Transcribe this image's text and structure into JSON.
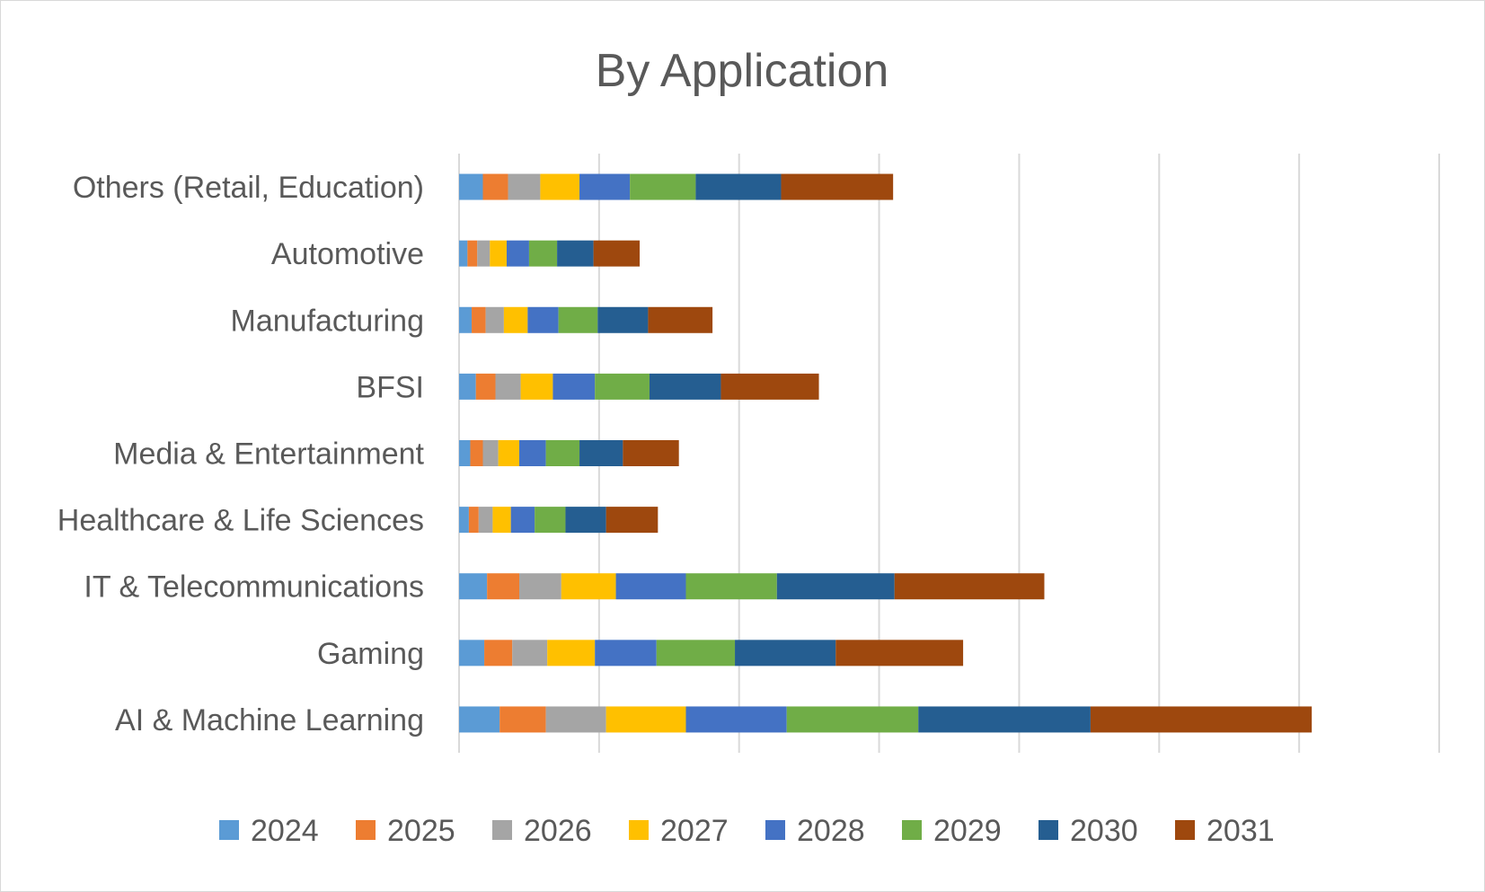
{
  "chart_data": {
    "type": "bar",
    "orientation": "horizontal",
    "stacked": true,
    "title": "By Application",
    "xlabel": "",
    "ylabel": "",
    "xlim": [
      0,
      7
    ],
    "grid": true,
    "legend_position": "bottom",
    "categories": [
      "AI & Machine Learning",
      "Gaming",
      "IT & Telecommunications",
      "Healthcare & Life Sciences",
      "Media & Entertainment",
      "BFSI",
      "Manufacturing",
      "Automotive",
      "Others (Retail, Education)"
    ],
    "series": [
      {
        "name": "2024",
        "color": "#5B9BD5",
        "values": [
          0.29,
          0.18,
          0.2,
          0.07,
          0.08,
          0.12,
          0.09,
          0.06,
          0.17
        ]
      },
      {
        "name": "2025",
        "color": "#ED7D31",
        "values": [
          0.33,
          0.2,
          0.23,
          0.07,
          0.09,
          0.14,
          0.1,
          0.07,
          0.18
        ]
      },
      {
        "name": "2026",
        "color": "#A5A5A5",
        "values": [
          0.43,
          0.25,
          0.3,
          0.1,
          0.11,
          0.18,
          0.13,
          0.09,
          0.23
        ]
      },
      {
        "name": "2027",
        "color": "#FFC000",
        "values": [
          0.57,
          0.34,
          0.39,
          0.13,
          0.15,
          0.23,
          0.17,
          0.12,
          0.28
        ]
      },
      {
        "name": "2028",
        "color": "#4472C4",
        "values": [
          0.72,
          0.44,
          0.5,
          0.17,
          0.19,
          0.3,
          0.22,
          0.16,
          0.36
        ]
      },
      {
        "name": "2029",
        "color": "#70AD47",
        "values": [
          0.94,
          0.56,
          0.65,
          0.22,
          0.24,
          0.39,
          0.28,
          0.2,
          0.47
        ]
      },
      {
        "name": "2030",
        "color": "#255E91",
        "values": [
          1.23,
          0.72,
          0.84,
          0.29,
          0.31,
          0.51,
          0.36,
          0.26,
          0.61
        ]
      },
      {
        "name": "2031",
        "color": "#9E480E",
        "values": [
          1.58,
          0.91,
          1.07,
          0.37,
          0.4,
          0.7,
          0.46,
          0.33,
          0.8
        ]
      }
    ]
  }
}
